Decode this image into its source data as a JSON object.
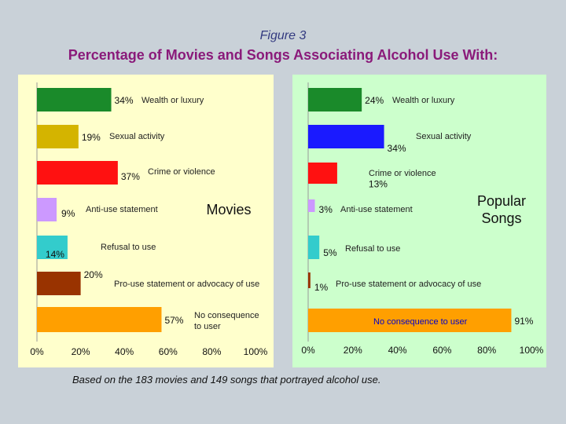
{
  "figure_label": "Figure 3",
  "title": "Percentage of Movies and Songs Associating Alcohol Use With:",
  "footnote": "Based on the 183 movies and 149 songs that portrayed alcohol use.",
  "colors": {
    "wealth": "#1a8a2a",
    "sexual": "#d4b400",
    "crime": "#ff1111",
    "anti_use": "#cc99ff",
    "refusal": "#33cccc",
    "pro_use": "#993300",
    "no_consequence": "#ff9f00",
    "sexual_songs": "#1a1aff"
  },
  "chart_data": [
    {
      "type": "bar",
      "orientation": "horizontal",
      "title": "Movies",
      "categories": [
        "Wealth or luxury",
        "Sexual activity",
        "Crime or violence",
        "Anti-use statement",
        "Refusal to use",
        "Pro-use statement or advocacy of use",
        "No consequence to user"
      ],
      "category_lines": [
        [
          "Wealth or luxury"
        ],
        [
          "Sexual activity"
        ],
        [
          "Crime or violence"
        ],
        [
          "Anti-use statement"
        ],
        [
          "Refusal to use"
        ],
        [
          "Pro-use statement or advocacy of use"
        ],
        [
          "No consequence",
          "to user"
        ]
      ],
      "values": [
        34,
        19,
        37,
        9,
        14,
        20,
        57
      ],
      "value_labels": [
        "34%",
        "19%",
        "37%",
        "9%",
        "14%",
        "20%",
        "57%"
      ],
      "xlim": [
        0,
        100
      ],
      "xticks": [
        "0%",
        "20%",
        "40%",
        "60%",
        "80%",
        "100%"
      ],
      "colors": [
        "#1a8a2a",
        "#d4b400",
        "#ff1111",
        "#cc99ff",
        "#33cccc",
        "#993300",
        "#ff9f00"
      ]
    },
    {
      "type": "bar",
      "orientation": "horizontal",
      "title_lines": [
        "Popular",
        "Songs"
      ],
      "categories": [
        "Wealth or luxury",
        "Sexual activity",
        "Crime or violence",
        "Anti-use statement",
        "Refusal to use",
        "Pro-use statement or advocacy of use",
        "No consequence to user"
      ],
      "values": [
        24,
        34,
        13,
        3,
        5,
        1,
        91
      ],
      "value_labels": [
        "24%",
        "34%",
        "13%",
        "3%",
        "5%",
        "1%",
        "91%"
      ],
      "xlim": [
        0,
        100
      ],
      "xticks": [
        "0%",
        "20%",
        "40%",
        "60%",
        "80%",
        "100%"
      ],
      "colors": [
        "#1a8a2a",
        "#1a1aff",
        "#ff1111",
        "#cc99ff",
        "#33cccc",
        "#993300",
        "#ff9f00"
      ]
    }
  ]
}
